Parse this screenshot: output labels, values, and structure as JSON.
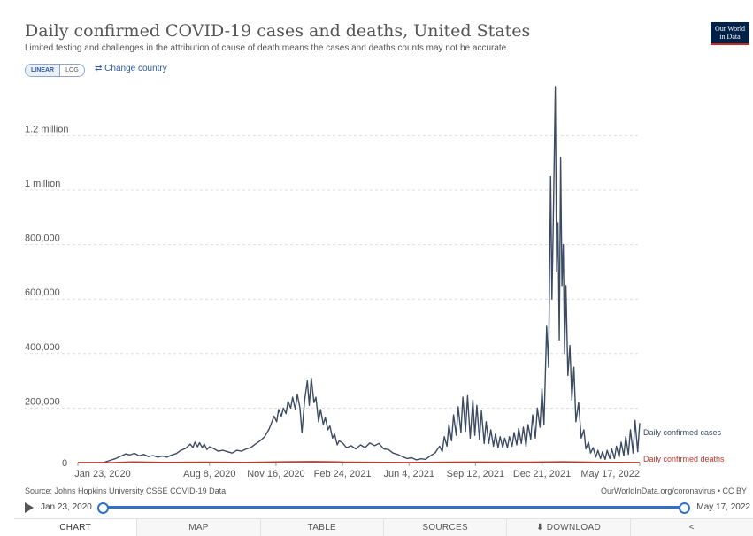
{
  "header": {
    "title": "Daily confirmed COVID-19 cases and deaths, United States",
    "subtitle": "Limited testing and challenges in the attribution of cause of death means the cases and deaths counts may not be accurate.",
    "logo_line1": "Our World",
    "logo_line2": "in Data"
  },
  "controls": {
    "linear_label": "LINEAR",
    "log_label": "LOG",
    "change_country_label": "⇄ Change country"
  },
  "footer": {
    "source": "Source: Johns Hopkins University CSSE COVID-19 Data",
    "credit": "OurWorldInData.org/coronavirus • CC BY"
  },
  "timeline": {
    "start": "Jan 23, 2020",
    "end": "May 17, 2022"
  },
  "tabs": [
    {
      "label": "CHART"
    },
    {
      "label": "MAP"
    },
    {
      "label": "TABLE"
    },
    {
      "label": "SOURCES"
    },
    {
      "label": "⬇ DOWNLOAD"
    },
    {
      "label": "<"
    }
  ],
  "chart_data": {
    "type": "line",
    "title": "Daily confirmed COVID-19 cases and deaths, United States",
    "x_range": [
      "2020-01-23",
      "2022-05-17"
    ],
    "ylim": [
      0,
      1380000
    ],
    "y_ticks": [
      {
        "value": 0,
        "label": "0"
      },
      {
        "value": 200000,
        "label": "200,000"
      },
      {
        "value": 400000,
        "label": "400,000"
      },
      {
        "value": 600000,
        "label": "600,000"
      },
      {
        "value": 800000,
        "label": "800,000"
      },
      {
        "value": 1000000,
        "label": "1 million"
      },
      {
        "value": 1200000,
        "label": "1.2 million"
      }
    ],
    "x_ticks": [
      {
        "date": "2020-01-23",
        "label": "Jan 23, 2020"
      },
      {
        "date": "2020-08-08",
        "label": "Aug 8, 2020"
      },
      {
        "date": "2020-11-16",
        "label": "Nov 16, 2020"
      },
      {
        "date": "2021-02-24",
        "label": "Feb 24, 2021"
      },
      {
        "date": "2021-06-04",
        "label": "Jun 4, 2021"
      },
      {
        "date": "2021-09-12",
        "label": "Sep 12, 2021"
      },
      {
        "date": "2021-12-21",
        "label": "Dec 21, 2021"
      },
      {
        "date": "2022-05-17",
        "label": "May 17, 2022"
      }
    ],
    "grid": true,
    "series": [
      {
        "name": "Daily confirmed cases",
        "color": "#3c4b63",
        "points": [
          [
            "2020-01-23",
            0
          ],
          [
            "2020-03-01",
            0
          ],
          [
            "2020-03-20",
            15000
          ],
          [
            "2020-04-04",
            32000
          ],
          [
            "2020-04-10",
            28000
          ],
          [
            "2020-04-17",
            34000
          ],
          [
            "2020-04-24",
            25000
          ],
          [
            "2020-05-01",
            30000
          ],
          [
            "2020-05-08",
            22000
          ],
          [
            "2020-05-15",
            26000
          ],
          [
            "2020-05-22",
            20000
          ],
          [
            "2020-05-29",
            24000
          ],
          [
            "2020-06-05",
            20000
          ],
          [
            "2020-06-12",
            28000
          ],
          [
            "2020-06-19",
            33000
          ],
          [
            "2020-06-26",
            45000
          ],
          [
            "2020-07-03",
            52000
          ],
          [
            "2020-07-10",
            68000
          ],
          [
            "2020-07-14",
            55000
          ],
          [
            "2020-07-17",
            75000
          ],
          [
            "2020-07-21",
            58000
          ],
          [
            "2020-07-24",
            73000
          ],
          [
            "2020-07-28",
            55000
          ],
          [
            "2020-07-31",
            68000
          ],
          [
            "2020-08-04",
            48000
          ],
          [
            "2020-08-08",
            58000
          ],
          [
            "2020-08-14",
            52000
          ],
          [
            "2020-08-21",
            42000
          ],
          [
            "2020-08-28",
            45000
          ],
          [
            "2020-09-04",
            40000
          ],
          [
            "2020-09-11",
            35000
          ],
          [
            "2020-09-18",
            45000
          ],
          [
            "2020-09-25",
            42000
          ],
          [
            "2020-10-02",
            50000
          ],
          [
            "2020-10-09",
            55000
          ],
          [
            "2020-10-16",
            68000
          ],
          [
            "2020-10-23",
            80000
          ],
          [
            "2020-10-30",
            95000
          ],
          [
            "2020-11-06",
            125000
          ],
          [
            "2020-11-13",
            170000
          ],
          [
            "2020-11-17",
            150000
          ],
          [
            "2020-11-20",
            195000
          ],
          [
            "2020-11-24",
            170000
          ],
          [
            "2020-11-27",
            200000
          ],
          [
            "2020-12-01",
            180000
          ],
          [
            "2020-12-04",
            225000
          ],
          [
            "2020-12-08",
            200000
          ],
          [
            "2020-12-11",
            240000
          ],
          [
            "2020-12-15",
            195000
          ],
          [
            "2020-12-18",
            250000
          ],
          [
            "2020-12-22",
            200000
          ],
          [
            "2020-12-25",
            110000
          ],
          [
            "2020-12-29",
            230000
          ],
          [
            "2021-01-02",
            300000
          ],
          [
            "2021-01-05",
            210000
          ],
          [
            "2021-01-08",
            310000
          ],
          [
            "2021-01-12",
            220000
          ],
          [
            "2021-01-15",
            240000
          ],
          [
            "2021-01-19",
            150000
          ],
          [
            "2021-01-22",
            195000
          ],
          [
            "2021-01-26",
            140000
          ],
          [
            "2021-01-29",
            165000
          ],
          [
            "2021-02-02",
            120000
          ],
          [
            "2021-02-05",
            135000
          ],
          [
            "2021-02-09",
            90000
          ],
          [
            "2021-02-12",
            105000
          ],
          [
            "2021-02-16",
            65000
          ],
          [
            "2021-02-19",
            80000
          ],
          [
            "2021-02-24",
            72000
          ],
          [
            "2021-03-02",
            55000
          ],
          [
            "2021-03-09",
            62000
          ],
          [
            "2021-03-16",
            50000
          ],
          [
            "2021-03-23",
            65000
          ],
          [
            "2021-03-30",
            55000
          ],
          [
            "2021-04-06",
            72000
          ],
          [
            "2021-04-13",
            62000
          ],
          [
            "2021-04-20",
            70000
          ],
          [
            "2021-04-27",
            50000
          ],
          [
            "2021-05-04",
            48000
          ],
          [
            "2021-05-11",
            35000
          ],
          [
            "2021-05-18",
            30000
          ],
          [
            "2021-05-25",
            22000
          ],
          [
            "2021-06-01",
            15000
          ],
          [
            "2021-06-08",
            18000
          ],
          [
            "2021-06-15",
            10000
          ],
          [
            "2021-06-22",
            14000
          ],
          [
            "2021-06-29",
            12000
          ],
          [
            "2021-07-06",
            25000
          ],
          [
            "2021-07-13",
            35000
          ],
          [
            "2021-07-20",
            60000
          ],
          [
            "2021-07-24",
            40000
          ],
          [
            "2021-07-27",
            95000
          ],
          [
            "2021-07-31",
            60000
          ],
          [
            "2021-08-03",
            140000
          ],
          [
            "2021-08-07",
            80000
          ],
          [
            "2021-08-10",
            175000
          ],
          [
            "2021-08-14",
            100000
          ],
          [
            "2021-08-17",
            205000
          ],
          [
            "2021-08-21",
            110000
          ],
          [
            "2021-08-24",
            240000
          ],
          [
            "2021-08-28",
            115000
          ],
          [
            "2021-08-31",
            245000
          ],
          [
            "2021-09-04",
            90000
          ],
          [
            "2021-09-08",
            230000
          ],
          [
            "2021-09-11",
            100000
          ],
          [
            "2021-09-14",
            210000
          ],
          [
            "2021-09-18",
            85000
          ],
          [
            "2021-09-21",
            190000
          ],
          [
            "2021-09-25",
            70000
          ],
          [
            "2021-09-28",
            150000
          ],
          [
            "2021-10-02",
            70000
          ],
          [
            "2021-10-05",
            120000
          ],
          [
            "2021-10-09",
            60000
          ],
          [
            "2021-10-12",
            105000
          ],
          [
            "2021-10-16",
            55000
          ],
          [
            "2021-10-19",
            95000
          ],
          [
            "2021-10-23",
            55000
          ],
          [
            "2021-10-26",
            90000
          ],
          [
            "2021-10-30",
            55000
          ],
          [
            "2021-11-02",
            95000
          ],
          [
            "2021-11-06",
            60000
          ],
          [
            "2021-11-09",
            110000
          ],
          [
            "2021-11-13",
            65000
          ],
          [
            "2021-11-16",
            125000
          ],
          [
            "2021-11-20",
            70000
          ],
          [
            "2021-11-23",
            130000
          ],
          [
            "2021-11-27",
            60000
          ],
          [
            "2021-11-30",
            140000
          ],
          [
            "2021-12-04",
            85000
          ],
          [
            "2021-12-07",
            175000
          ],
          [
            "2021-12-11",
            90000
          ],
          [
            "2021-12-14",
            200000
          ],
          [
            "2021-12-18",
            130000
          ],
          [
            "2021-12-21",
            270000
          ],
          [
            "2021-12-24",
            140000
          ],
          [
            "2021-12-28",
            500000
          ],
          [
            "2021-12-31",
            350000
          ],
          [
            "2022-01-03",
            1050000
          ],
          [
            "2022-01-05",
            600000
          ],
          [
            "2022-01-07",
            880000
          ],
          [
            "2022-01-10",
            1380000
          ],
          [
            "2022-01-12",
            700000
          ],
          [
            "2022-01-14",
            880000
          ],
          [
            "2022-01-16",
            450000
          ],
          [
            "2022-01-18",
            1120000
          ],
          [
            "2022-01-20",
            650000
          ],
          [
            "2022-01-22",
            800000
          ],
          [
            "2022-01-24",
            400000
          ],
          [
            "2022-01-26",
            650000
          ],
          [
            "2022-01-29",
            320000
          ],
          [
            "2022-02-01",
            430000
          ],
          [
            "2022-02-04",
            230000
          ],
          [
            "2022-02-07",
            350000
          ],
          [
            "2022-02-10",
            150000
          ],
          [
            "2022-02-14",
            220000
          ],
          [
            "2022-02-18",
            90000
          ],
          [
            "2022-02-22",
            120000
          ],
          [
            "2022-02-25",
            50000
          ],
          [
            "2022-03-01",
            75000
          ],
          [
            "2022-03-04",
            35000
          ],
          [
            "2022-03-08",
            55000
          ],
          [
            "2022-03-12",
            20000
          ],
          [
            "2022-03-15",
            45000
          ],
          [
            "2022-03-19",
            15000
          ],
          [
            "2022-03-22",
            40000
          ],
          [
            "2022-03-26",
            12000
          ],
          [
            "2022-03-29",
            45000
          ],
          [
            "2022-04-02",
            15000
          ],
          [
            "2022-04-05",
            50000
          ],
          [
            "2022-04-09",
            15000
          ],
          [
            "2022-04-12",
            60000
          ],
          [
            "2022-04-16",
            20000
          ],
          [
            "2022-04-19",
            75000
          ],
          [
            "2022-04-23",
            25000
          ],
          [
            "2022-04-26",
            95000
          ],
          [
            "2022-04-30",
            30000
          ],
          [
            "2022-05-03",
            120000
          ],
          [
            "2022-05-07",
            35000
          ],
          [
            "2022-05-10",
            155000
          ],
          [
            "2022-05-14",
            40000
          ],
          [
            "2022-05-17",
            145000
          ]
        ]
      },
      {
        "name": "Daily confirmed deaths",
        "color": "#c0392b",
        "points": [
          [
            "2020-01-23",
            0
          ],
          [
            "2020-03-15",
            50
          ],
          [
            "2020-04-15",
            2200
          ],
          [
            "2020-06-01",
            800
          ],
          [
            "2020-08-01",
            1200
          ],
          [
            "2020-10-01",
            800
          ],
          [
            "2020-12-01",
            2500
          ],
          [
            "2021-01-12",
            3500
          ],
          [
            "2021-03-01",
            1500
          ],
          [
            "2021-06-01",
            400
          ],
          [
            "2021-09-15",
            2000
          ],
          [
            "2021-12-01",
            1200
          ],
          [
            "2022-01-25",
            2600
          ],
          [
            "2022-03-15",
            1000
          ],
          [
            "2022-05-17",
            400
          ]
        ]
      }
    ]
  }
}
